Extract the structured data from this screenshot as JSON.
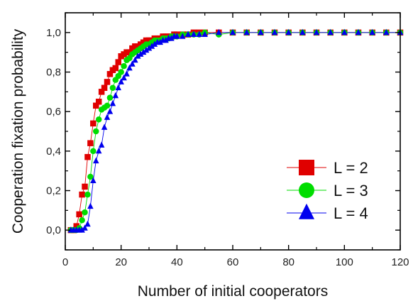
{
  "chart_data": {
    "type": "scatter",
    "xlabel": "Number of initial cooperators",
    "ylabel": "Cooperation fixation probability",
    "xlim": [
      0,
      120
    ],
    "ylim": [
      -0.1,
      1.1
    ],
    "x_ticks": [
      "0",
      "20",
      "40",
      "60",
      "80",
      "100",
      "120"
    ],
    "y_ticks": [
      "0,0",
      "0,2",
      "0,4",
      "0,6",
      "0,8",
      "1,0"
    ],
    "legend_position": "middle-right",
    "grid": false,
    "series": [
      {
        "name": "L = 2",
        "color": "#e00000",
        "marker": "square",
        "x": [
          2,
          3,
          4,
          5,
          6,
          7,
          8,
          9,
          10,
          11,
          12,
          13,
          14,
          15,
          16,
          17,
          18,
          19,
          20,
          21,
          22,
          23,
          24,
          25,
          26,
          27,
          28,
          29,
          30,
          31,
          32,
          33,
          34,
          35,
          36,
          37,
          38,
          39,
          40,
          42,
          44,
          46,
          48,
          50,
          55,
          60,
          65,
          70,
          75,
          80,
          85,
          90,
          95,
          100,
          105,
          110,
          115,
          120
        ],
        "y": [
          0.0,
          0.0,
          0.02,
          0.08,
          0.18,
          0.22,
          0.37,
          0.44,
          0.54,
          0.63,
          0.65,
          0.7,
          0.72,
          0.75,
          0.79,
          0.81,
          0.82,
          0.85,
          0.88,
          0.89,
          0.9,
          0.9,
          0.92,
          0.93,
          0.93,
          0.94,
          0.95,
          0.96,
          0.96,
          0.96,
          0.97,
          0.97,
          0.97,
          0.98,
          0.98,
          0.98,
          0.98,
          0.99,
          0.99,
          0.99,
          0.99,
          1.0,
          1.0,
          1.0,
          1.0,
          1.0,
          1.0,
          1.0,
          1.0,
          1.0,
          1.0,
          1.0,
          1.0,
          1.0,
          1.0,
          1.0,
          1.0,
          1.0
        ]
      },
      {
        "name": "L = 3",
        "color": "#00dd00",
        "marker": "circle",
        "x": [
          2,
          3,
          4,
          5,
          6,
          7,
          8,
          9,
          10,
          11,
          12,
          13,
          14,
          15,
          16,
          17,
          18,
          19,
          20,
          21,
          22,
          23,
          24,
          25,
          26,
          27,
          28,
          29,
          30,
          31,
          32,
          33,
          34,
          35,
          36,
          37,
          38,
          39,
          40,
          42,
          44,
          46,
          48,
          50,
          55,
          60,
          65,
          70,
          75,
          80,
          85,
          90,
          95,
          100,
          105,
          110,
          115,
          120
        ],
        "y": [
          0.0,
          0.0,
          0.0,
          0.01,
          0.05,
          0.09,
          0.18,
          0.27,
          0.4,
          0.5,
          0.56,
          0.61,
          0.62,
          0.63,
          0.67,
          0.72,
          0.76,
          0.78,
          0.8,
          0.83,
          0.86,
          0.87,
          0.89,
          0.9,
          0.91,
          0.92,
          0.93,
          0.94,
          0.94,
          0.95,
          0.96,
          0.96,
          0.96,
          0.97,
          0.97,
          0.97,
          0.98,
          0.98,
          0.98,
          0.99,
          0.99,
          0.99,
          0.99,
          1.0,
          0.99,
          1.0,
          1.0,
          1.0,
          1.0,
          1.0,
          1.0,
          1.0,
          1.0,
          1.0,
          1.0,
          1.0,
          1.0,
          1.0
        ]
      },
      {
        "name": "L = 4",
        "color": "#0000ee",
        "marker": "triangle",
        "x": [
          2,
          3,
          4,
          5,
          6,
          7,
          8,
          9,
          10,
          11,
          12,
          13,
          14,
          15,
          16,
          17,
          18,
          19,
          20,
          21,
          22,
          23,
          24,
          25,
          26,
          27,
          28,
          29,
          30,
          31,
          32,
          33,
          34,
          35,
          36,
          37,
          38,
          39,
          40,
          42,
          44,
          46,
          48,
          50,
          55,
          60,
          65,
          70,
          75,
          80,
          85,
          90,
          95,
          100,
          105,
          110,
          115,
          120
        ],
        "y": [
          0.0,
          0.0,
          0.0,
          0.0,
          0.0,
          0.01,
          0.03,
          0.12,
          0.25,
          0.35,
          0.4,
          0.43,
          0.52,
          0.57,
          0.6,
          0.64,
          0.68,
          0.72,
          0.75,
          0.77,
          0.79,
          0.82,
          0.84,
          0.86,
          0.88,
          0.89,
          0.9,
          0.91,
          0.92,
          0.93,
          0.94,
          0.95,
          0.95,
          0.96,
          0.96,
          0.97,
          0.97,
          0.98,
          0.98,
          0.98,
          0.99,
          0.99,
          0.99,
          0.99,
          1.0,
          1.0,
          1.0,
          1.0,
          1.0,
          1.0,
          1.0,
          1.0,
          1.0,
          1.0,
          1.0,
          1.0,
          1.0,
          1.0
        ]
      }
    ]
  }
}
